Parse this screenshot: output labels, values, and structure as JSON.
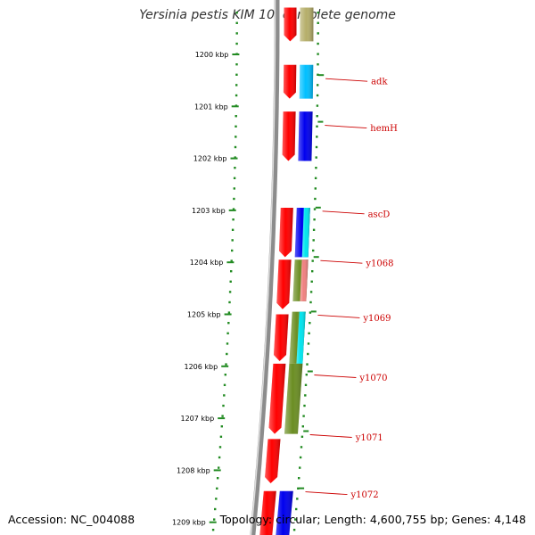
{
  "title": "Yersinia pestis KIM 10, complete genome",
  "accession_text": "Accession: NC_004088",
  "summary_text": "Topology: circular; Length: 4,600,755 bp; Genes: 4,148",
  "scale_ticks": [
    {
      "kbp": 1200,
      "label": "1200 kbp"
    },
    {
      "kbp": 1201,
      "label": "1201 kbp"
    },
    {
      "kbp": 1202,
      "label": "1202 kbp"
    },
    {
      "kbp": 1203,
      "label": "1203 kbp"
    },
    {
      "kbp": 1204,
      "label": "1204 kbp"
    },
    {
      "kbp": 1205,
      "label": "1205 kbp"
    },
    {
      "kbp": 1206,
      "label": "1206 kbp"
    },
    {
      "kbp": 1207,
      "label": "1207 kbp"
    },
    {
      "kbp": 1208,
      "label": "1208 kbp"
    },
    {
      "kbp": 1209,
      "label": "1209 kbp"
    }
  ],
  "gene_labels": [
    {
      "name": "adk",
      "kbp": 1200.5
    },
    {
      "name": "hemH",
      "kbp": 1201.4
    },
    {
      "name": "ascD",
      "kbp": 1203.05
    },
    {
      "name": "y1068",
      "kbp": 1204.0
    },
    {
      "name": "y1069",
      "kbp": 1205.05
    },
    {
      "name": "y1070",
      "kbp": 1206.2
    },
    {
      "name": "y1071",
      "kbp": 1207.35
    },
    {
      "name": "y1072",
      "kbp": 1208.45
    }
  ],
  "forward_genes": [
    {
      "start": 1199.1,
      "end": 1199.75
    },
    {
      "start": 1200.2,
      "end": 1200.85
    },
    {
      "start": 1201.1,
      "end": 1202.05
    },
    {
      "start": 1202.95,
      "end": 1203.9
    },
    {
      "start": 1203.95,
      "end": 1204.9
    },
    {
      "start": 1205.0,
      "end": 1205.9
    },
    {
      "start": 1205.95,
      "end": 1207.3
    },
    {
      "start": 1207.4,
      "end": 1208.25
    },
    {
      "start": 1208.4,
      "end": 1209.5
    }
  ],
  "feature_blocks": [
    {
      "track": 1,
      "start": 1199.1,
      "end": 1199.75,
      "color": "#b5ae6a"
    },
    {
      "track": 1,
      "start": 1200.2,
      "end": 1200.85,
      "color": "#00bfff"
    },
    {
      "track": 1,
      "start": 1201.1,
      "end": 1202.05,
      "color": "#0000ee"
    },
    {
      "track": 1,
      "start": 1202.95,
      "end": 1203.9,
      "color": "#0000ee"
    },
    {
      "track": 2,
      "start": 1202.95,
      "end": 1203.9,
      "color": "#00e5ee"
    },
    {
      "track": 1,
      "start": 1203.95,
      "end": 1204.75,
      "color": "#6b8e23"
    },
    {
      "track": 2,
      "start": 1203.95,
      "end": 1204.75,
      "color": "#f08080"
    },
    {
      "track": 1,
      "start": 1204.95,
      "end": 1205.95,
      "color": "#6b8e23"
    },
    {
      "track": 2,
      "start": 1204.95,
      "end": 1205.95,
      "color": "#00e5ee"
    },
    {
      "track": 1,
      "start": 1205.95,
      "end": 1207.3,
      "color": "#6b8e23"
    },
    {
      "track": 1,
      "start": 1208.4,
      "end": 1209.5,
      "color": "#0000ee"
    }
  ],
  "colors": {
    "backbone": "#8c8c8c",
    "forward_gene": "#ff0000",
    "tick": "#228b22",
    "label_line": "#cc0000",
    "label_text": "#cc0000"
  }
}
